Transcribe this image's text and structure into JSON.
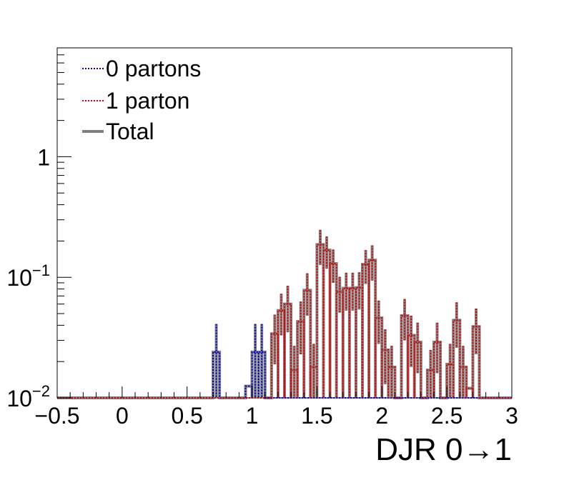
{
  "chart_data": {
    "type": "line",
    "subtype": "histogram-step",
    "xlabel": "DJR 0→1",
    "ylabel": "",
    "xlim": [
      -0.5,
      3
    ],
    "ylim": [
      0.01,
      8
    ],
    "yscale": "log",
    "grid": false,
    "legend_position": "top-left",
    "x_ticks": [
      {
        "value": -0.5,
        "label": "−0.5"
      },
      {
        "value": 0,
        "label": "0"
      },
      {
        "value": 0.5,
        "label": "0.5"
      },
      {
        "value": 1,
        "label": "1"
      },
      {
        "value": 1.5,
        "label": "1.5"
      },
      {
        "value": 2,
        "label": "2"
      },
      {
        "value": 2.5,
        "label": "2.5"
      },
      {
        "value": 3,
        "label": "3"
      }
    ],
    "y_ticks": [
      {
        "value": 0.01,
        "base": "10",
        "exp": "−2"
      },
      {
        "value": 0.1,
        "base": "10",
        "exp": "−1"
      },
      {
        "value": 1,
        "base": "1",
        "exp": ""
      }
    ],
    "bin_edges_range": [
      -0.5,
      3
    ],
    "bin_width": 0.05,
    "series": [
      {
        "name": "0 partons",
        "color": "#0000cc",
        "style": "dotted",
        "bins": [
          {
            "x0": 0.7,
            "x1": 0.75,
            "y": 0.024,
            "err": 0.017
          },
          {
            "x0": 0.95,
            "x1": 1.0,
            "y": 0.0125,
            "err": 0.0
          },
          {
            "x0": 1.0,
            "x1": 1.05,
            "y": 0.024,
            "err": 0.017
          },
          {
            "x0": 1.05,
            "x1": 1.1,
            "y": 0.024,
            "err": 0.017
          }
        ]
      },
      {
        "name": "1 parton",
        "color": "#dd0000",
        "style": "dotted",
        "bins": [
          {
            "x0": 1.15,
            "x1": 1.2,
            "y": 0.034,
            "err": 0.015
          },
          {
            "x0": 1.2,
            "x1": 1.25,
            "y": 0.053,
            "err": 0.02
          },
          {
            "x0": 1.25,
            "x1": 1.3,
            "y": 0.06,
            "err": 0.025
          },
          {
            "x0": 1.3,
            "x1": 1.35,
            "y": 0.017,
            "err": 0.01
          },
          {
            "x0": 1.35,
            "x1": 1.4,
            "y": 0.043,
            "err": 0.02
          },
          {
            "x0": 1.4,
            "x1": 1.45,
            "y": 0.078,
            "err": 0.03
          },
          {
            "x0": 1.45,
            "x1": 1.5,
            "y": 0.018,
            "err": 0.01
          },
          {
            "x0": 1.5,
            "x1": 1.55,
            "y": 0.187,
            "err": 0.06
          },
          {
            "x0": 1.55,
            "x1": 1.6,
            "y": 0.168,
            "err": 0.05
          },
          {
            "x0": 1.6,
            "x1": 1.65,
            "y": 0.13,
            "err": 0.04
          },
          {
            "x0": 1.65,
            "x1": 1.7,
            "y": 0.076,
            "err": 0.025
          },
          {
            "x0": 1.7,
            "x1": 1.75,
            "y": 0.081,
            "err": 0.028
          },
          {
            "x0": 1.75,
            "x1": 1.8,
            "y": 0.081,
            "err": 0.028
          },
          {
            "x0": 1.8,
            "x1": 1.85,
            "y": 0.082,
            "err": 0.028
          },
          {
            "x0": 1.85,
            "x1": 1.9,
            "y": 0.128,
            "err": 0.04
          },
          {
            "x0": 1.9,
            "x1": 1.95,
            "y": 0.139,
            "err": 0.045
          },
          {
            "x0": 1.95,
            "x1": 2.0,
            "y": 0.046,
            "err": 0.018
          },
          {
            "x0": 2.0,
            "x1": 2.05,
            "y": 0.025,
            "err": 0.012
          },
          {
            "x0": 2.05,
            "x1": 2.1,
            "y": 0.018,
            "err": 0.009
          },
          {
            "x0": 2.1,
            "x1": 2.15,
            "y": 0.01,
            "err": 0.0
          },
          {
            "x0": 2.15,
            "x1": 2.2,
            "y": 0.048,
            "err": 0.018
          },
          {
            "x0": 2.2,
            "x1": 2.25,
            "y": 0.033,
            "err": 0.015
          },
          {
            "x0": 2.25,
            "x1": 2.3,
            "y": 0.029,
            "err": 0.013
          },
          {
            "x0": 2.3,
            "x1": 2.35,
            "y": 0.01,
            "err": 0.0
          },
          {
            "x0": 2.35,
            "x1": 2.4,
            "y": 0.017,
            "err": 0.008
          },
          {
            "x0": 2.4,
            "x1": 2.45,
            "y": 0.029,
            "err": 0.013
          },
          {
            "x0": 2.45,
            "x1": 2.5,
            "y": 0.01,
            "err": 0.0
          },
          {
            "x0": 2.5,
            "x1": 2.55,
            "y": 0.019,
            "err": 0.009
          },
          {
            "x0": 2.55,
            "x1": 2.6,
            "y": 0.044,
            "err": 0.018
          },
          {
            "x0": 2.6,
            "x1": 2.65,
            "y": 0.018,
            "err": 0.009
          },
          {
            "x0": 2.65,
            "x1": 2.7,
            "y": 0.012,
            "err": 0.0
          },
          {
            "x0": 2.7,
            "x1": 2.75,
            "y": 0.039,
            "err": 0.016
          },
          {
            "x0": 2.75,
            "x1": 2.8,
            "y": 0.01,
            "err": 0.0
          }
        ]
      },
      {
        "name": "Total",
        "color": "#808080",
        "style": "solid"
      }
    ]
  }
}
